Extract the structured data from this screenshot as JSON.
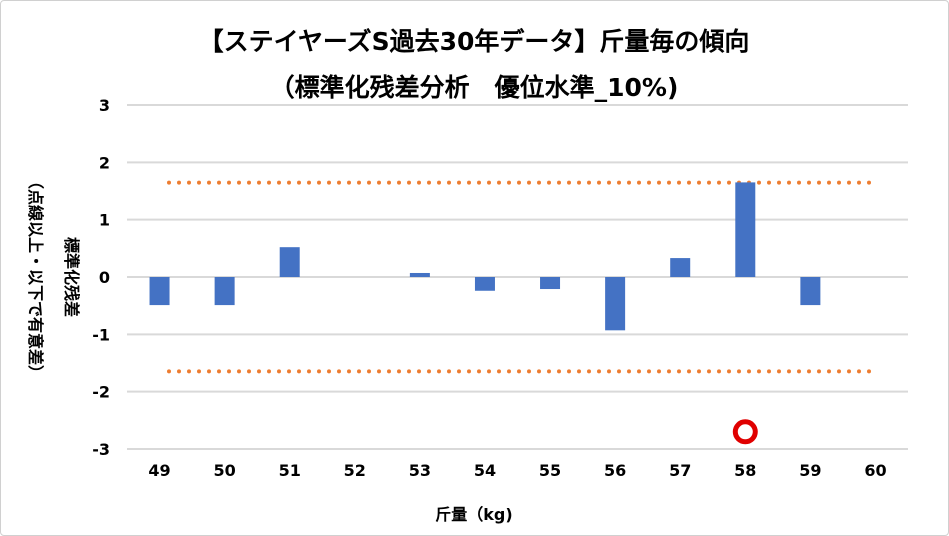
{
  "chart_data": {
    "type": "bar",
    "title": "【ステイヤーズS過去30年データ】斤量毎の傾向",
    "subtitle": "（標準化残差分析　優位水準_10%)",
    "xlabel": "斤量（kg)",
    "ylabel": "標準化残差",
    "ylabel_note": "（点線以上・以下で有意差）",
    "categories": [
      "49",
      "50",
      "51",
      "52",
      "53",
      "54",
      "55",
      "56",
      "57",
      "58",
      "59",
      "60"
    ],
    "values": [
      -0.49,
      -0.49,
      0.52,
      0,
      0.07,
      -0.24,
      -0.21,
      -0.93,
      0.33,
      1.65,
      -0.49,
      0
    ],
    "ylim": [
      -3,
      3
    ],
    "yticks": [
      "3",
      "2",
      "1",
      "0",
      "-1",
      "-2",
      "-3"
    ],
    "threshold_lines": [
      1.645,
      -1.645
    ],
    "highlight": {
      "category": "58",
      "y": -2.7
    },
    "grid": true,
    "colors": {
      "bar": "#4472c4",
      "threshold": "#ed7d31",
      "highlight": "#e00000",
      "grid": "#d9d9d9"
    }
  }
}
